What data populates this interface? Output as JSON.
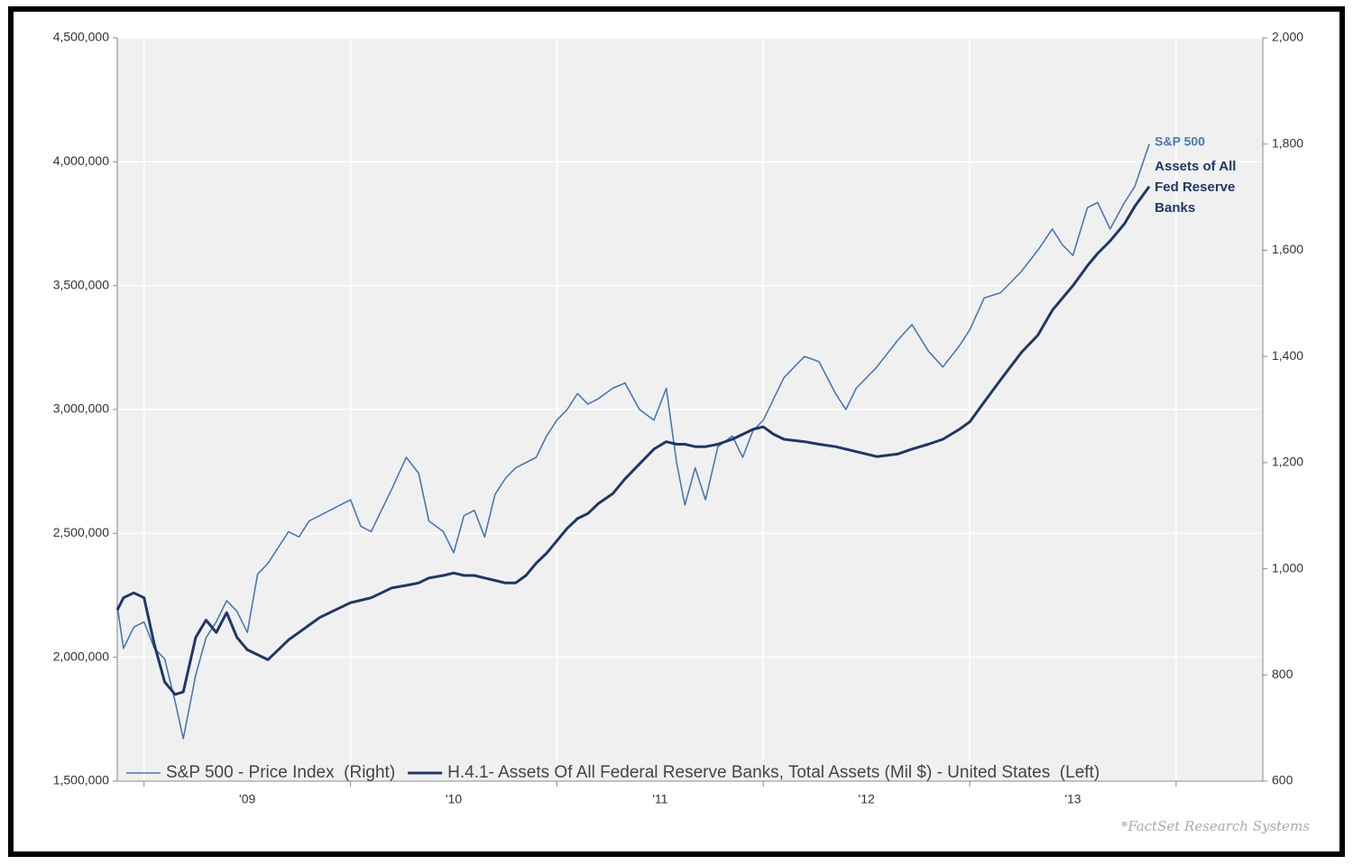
{
  "chart_data": {
    "type": "line",
    "x": [
      2008.87,
      2008.9,
      2008.95,
      2009.0,
      2009.05,
      2009.1,
      2009.15,
      2009.19,
      2009.25,
      2009.3,
      2009.35,
      2009.4,
      2009.45,
      2009.5,
      2009.55,
      2009.6,
      2009.65,
      2009.7,
      2009.75,
      2009.8,
      2009.85,
      2009.9,
      2009.95,
      2010.0,
      2010.05,
      2010.1,
      2010.15,
      2010.2,
      2010.27,
      2010.33,
      2010.38,
      2010.45,
      2010.5,
      2010.55,
      2010.6,
      2010.65,
      2010.7,
      2010.75,
      2010.8,
      2010.85,
      2010.9,
      2010.95,
      2011.0,
      2011.05,
      2011.1,
      2011.15,
      2011.2,
      2011.27,
      2011.33,
      2011.4,
      2011.47,
      2011.53,
      2011.58,
      2011.62,
      2011.67,
      2011.72,
      2011.78,
      2011.85,
      2011.9,
      2011.95,
      2012.0,
      2012.05,
      2012.1,
      2012.2,
      2012.27,
      2012.35,
      2012.4,
      2012.45,
      2012.55,
      2012.65,
      2012.72,
      2012.8,
      2012.87,
      2012.95,
      2013.0,
      2013.07,
      2013.15,
      2013.25,
      2013.33,
      2013.4,
      2013.45,
      2013.5,
      2013.57,
      2013.62,
      2013.68,
      2013.75,
      2013.8,
      2013.87
    ],
    "series": [
      {
        "name": "S&P 500 - Price Index  (Right)",
        "color": "#4a78b0",
        "axis": "y2",
        "values": [
          930,
          850,
          890,
          900,
          850,
          830,
          750,
          680,
          800,
          870,
          900,
          940,
          920,
          880,
          990,
          1010,
          1040,
          1070,
          1060,
          1090,
          1100,
          1110,
          1120,
          1130,
          1080,
          1070,
          1110,
          1150,
          1210,
          1180,
          1090,
          1070,
          1030,
          1100,
          1110,
          1060,
          1140,
          1170,
          1190,
          1200,
          1210,
          1250,
          1280,
          1300,
          1330,
          1310,
          1320,
          1340,
          1350,
          1300,
          1280,
          1340,
          1200,
          1120,
          1190,
          1130,
          1230,
          1250,
          1210,
          1260,
          1280,
          1320,
          1360,
          1400,
          1390,
          1330,
          1300,
          1340,
          1380,
          1430,
          1460,
          1410,
          1380,
          1420,
          1450,
          1510,
          1520,
          1560,
          1600,
          1640,
          1610,
          1590,
          1680,
          1690,
          1640,
          1690,
          1720,
          1800
        ]
      },
      {
        "name": "H.4.1- Assets Of All Federal Reserve Banks, Total Assets (Mil $) - United States  (Left)",
        "color": "#1f3864",
        "axis": "y",
        "values": [
          2190000,
          2240000,
          2260000,
          2240000,
          2050000,
          1900000,
          1850000,
          1860000,
          2080000,
          2150000,
          2100000,
          2180000,
          2080000,
          2030000,
          2010000,
          1990000,
          2030000,
          2070000,
          2100000,
          2130000,
          2160000,
          2180000,
          2200000,
          2220000,
          2230000,
          2240000,
          2260000,
          2280000,
          2290000,
          2300000,
          2320000,
          2330000,
          2340000,
          2330000,
          2330000,
          2320000,
          2310000,
          2300000,
          2300000,
          2330000,
          2380000,
          2420000,
          2470000,
          2520000,
          2560000,
          2580000,
          2620000,
          2660000,
          2720000,
          2780000,
          2840000,
          2870000,
          2860000,
          2860000,
          2850000,
          2850000,
          2860000,
          2880000,
          2900000,
          2920000,
          2930000,
          2900000,
          2880000,
          2870000,
          2860000,
          2850000,
          2840000,
          2830000,
          2810000,
          2820000,
          2840000,
          2860000,
          2880000,
          2920000,
          2950000,
          3030000,
          3120000,
          3230000,
          3300000,
          3400000,
          3450000,
          3500000,
          3580000,
          3630000,
          3680000,
          3750000,
          3820000,
          3900000
        ]
      }
    ],
    "xlim": [
      2008.87,
      2014.42
    ],
    "xticks": [
      {
        "value": 2009.5,
        "label": "'09"
      },
      {
        "value": 2010.5,
        "label": "'10"
      },
      {
        "value": 2011.5,
        "label": "'11"
      },
      {
        "value": 2012.5,
        "label": "'12"
      },
      {
        "value": 2013.5,
        "label": "'13"
      }
    ],
    "xgrid": [
      2009,
      2010,
      2011,
      2012,
      2013,
      2014
    ],
    "ylim": [
      1500000,
      4500000
    ],
    "yticks": [
      {
        "value": 1500000,
        "label": "1,500,000"
      },
      {
        "value": 2000000,
        "label": "2,000,000"
      },
      {
        "value": 2500000,
        "label": "2,500,000"
      },
      {
        "value": 3000000,
        "label": "3,000,000"
      },
      {
        "value": 3500000,
        "label": "3,500,000"
      },
      {
        "value": 4000000,
        "label": "4,000,000"
      },
      {
        "value": 4500000,
        "label": "4,500,000"
      }
    ],
    "y2lim": [
      600,
      2000
    ],
    "y2ticks": [
      600,
      800,
      {
        "value": 1000,
        "label": "1,000"
      },
      {
        "value": 1200,
        "label": "1,200"
      },
      {
        "value": 1400,
        "label": "1,400"
      },
      {
        "value": 1600,
        "label": "1,600"
      },
      {
        "value": 1800,
        "label": "1,800"
      },
      {
        "value": 2000,
        "label": "2,000"
      }
    ],
    "grid": true,
    "legend": "lower-left",
    "annotations": [
      "S&P 500",
      "Assets of All",
      "Fed Reserve",
      "Banks"
    ],
    "source": "*FactSet Research Systems"
  }
}
